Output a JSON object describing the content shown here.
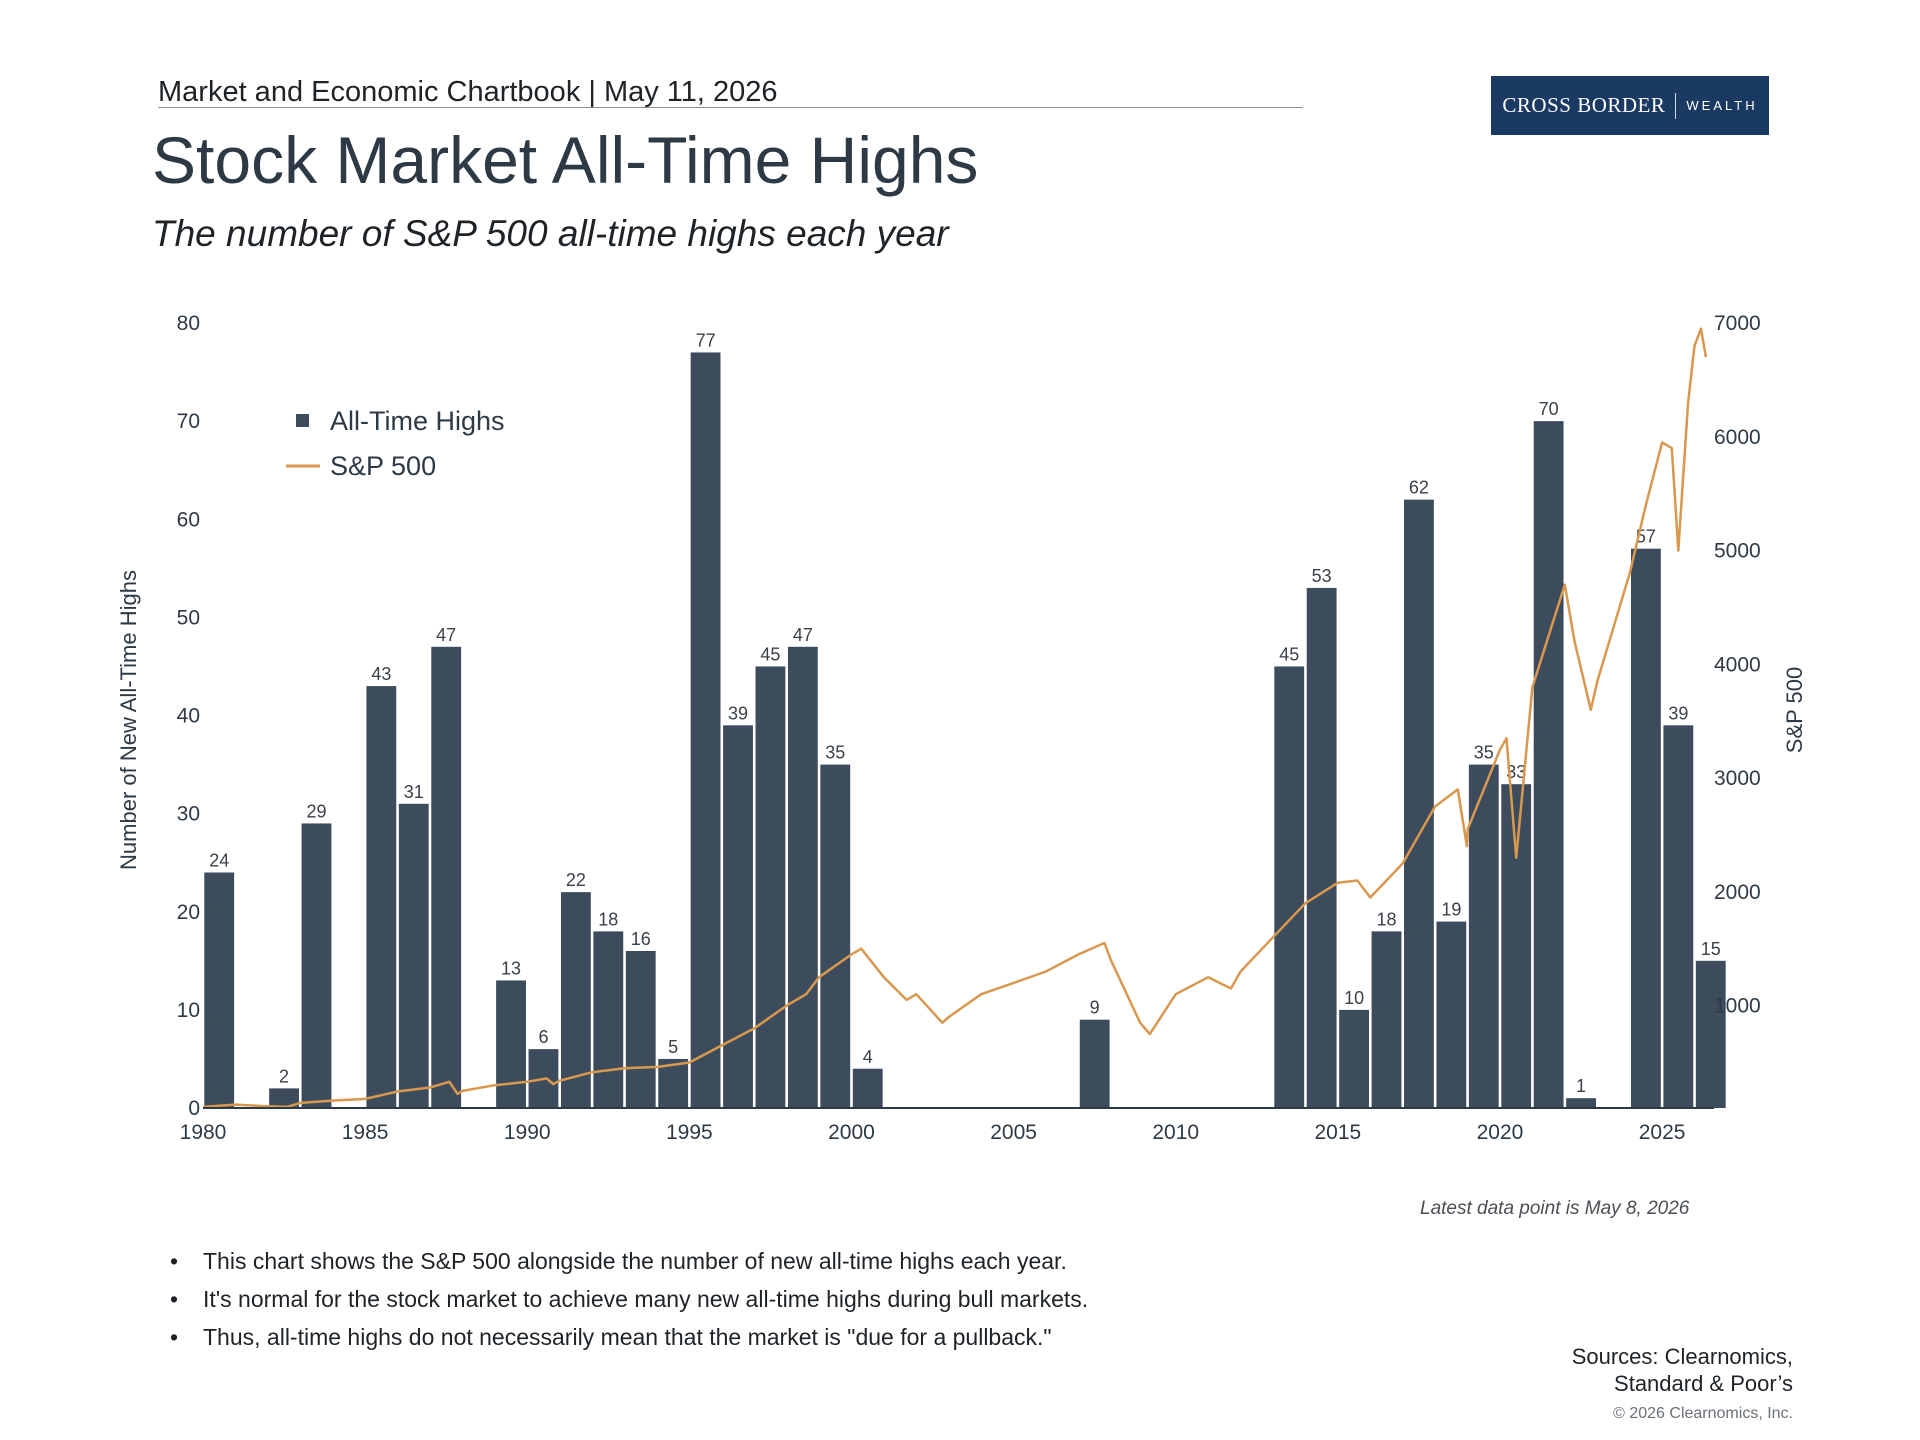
{
  "header": {
    "chartbook_line": "Market and Economic Chartbook | May 11, 2026",
    "logo_left": "CROSS BORDER",
    "logo_right": "WEALTH"
  },
  "title": "Stock Market All-Time Highs",
  "subtitle": "The number of S&P 500 all-time highs each year",
  "chart_data": {
    "type": "bar",
    "xlim": [
      1980,
      2026.6
    ],
    "x_ticks": [
      "1980",
      "1985",
      "1990",
      "1995",
      "2000",
      "2005",
      "2010",
      "2015",
      "2020",
      "2025"
    ],
    "ylabel_left": "Number of New All-Time Highs",
    "ylim_left": [
      0,
      80
    ],
    "y_ticks_left": [
      "0",
      "10",
      "20",
      "30",
      "40",
      "50",
      "60",
      "70",
      "80"
    ],
    "ylabel_right": "S&P 500",
    "ylim_right": [
      100,
      7000
    ],
    "y_ticks_right": [
      "1000",
      "2000",
      "3000",
      "4000",
      "5000",
      "6000",
      "7000"
    ],
    "legend": {
      "placement": "top-left",
      "entries": [
        "All-Time Highs",
        "S&P 500"
      ]
    },
    "colors": {
      "bars": "#3d4c5d",
      "line": "#d8984f",
      "axis": "#2d3a46"
    },
    "series": [
      {
        "name": "All-Time Highs",
        "type": "bar",
        "categories": [
          1980,
          1981,
          1982,
          1983,
          1984,
          1985,
          1986,
          1987,
          1988,
          1989,
          1990,
          1991,
          1992,
          1993,
          1994,
          1995,
          1996,
          1997,
          1998,
          1999,
          2000,
          2001,
          2002,
          2003,
          2004,
          2005,
          2006,
          2007,
          2008,
          2009,
          2010,
          2011,
          2012,
          2013,
          2014,
          2015,
          2016,
          2017,
          2018,
          2019,
          2020,
          2021,
          2022,
          2023,
          2024,
          2025,
          2026
        ],
        "values": [
          24,
          0,
          2,
          29,
          0,
          43,
          31,
          47,
          0,
          13,
          6,
          22,
          18,
          16,
          5,
          77,
          39,
          45,
          47,
          35,
          4,
          0,
          0,
          0,
          0,
          0,
          0,
          9,
          0,
          0,
          0,
          0,
          0,
          45,
          53,
          10,
          18,
          62,
          19,
          35,
          33,
          70,
          1,
          0,
          57,
          39,
          15
        ],
        "labels": [
          "24",
          "",
          "2",
          "29",
          "",
          "43",
          "31",
          "47",
          "",
          "13",
          "6",
          "22",
          "18",
          "16",
          "5",
          "77",
          "39",
          "45",
          "47",
          "35",
          "4",
          "",
          "",
          "",
          "",
          "",
          "",
          "9",
          "",
          "",
          "",
          "",
          "",
          "45",
          "53",
          "10",
          "18",
          "62",
          "19",
          "35",
          "33",
          "70",
          "1",
          "",
          "57",
          "39",
          "15"
        ]
      },
      {
        "name": "S&P 500",
        "type": "line",
        "x": [
          1980.0,
          1981.0,
          1982.0,
          1982.6,
          1983.0,
          1984.0,
          1985.0,
          1986.0,
          1987.0,
          1987.6,
          1987.85,
          1988.0,
          1989.0,
          1990.0,
          1990.6,
          1990.8,
          1991.0,
          1992.0,
          1993.0,
          1994.0,
          1995.0,
          1996.0,
          1997.0,
          1998.0,
          1998.6,
          1999.0,
          2000.0,
          2000.3,
          2001.0,
          2001.7,
          2002.0,
          2002.8,
          2003.0,
          2004.0,
          2005.0,
          2006.0,
          2007.0,
          2007.8,
          2008.0,
          2008.9,
          2009.2,
          2010.0,
          2011.0,
          2011.7,
          2012.0,
          2013.0,
          2014.0,
          2015.0,
          2015.6,
          2016.0,
          2016.5,
          2017.0,
          2018.0,
          2018.7,
          2018.98,
          2019.0,
          2020.0,
          2020.2,
          2020.5,
          2021.0,
          2022.0,
          2022.3,
          2022.8,
          2023.0,
          2024.0,
          2024.5,
          2025.0,
          2025.3,
          2025.5,
          2025.8,
          2026.0,
          2026.2,
          2026.35
        ],
        "values": [
          110,
          130,
          115,
          110,
          145,
          165,
          180,
          245,
          280,
          330,
          225,
          250,
          300,
          330,
          360,
          310,
          340,
          415,
          450,
          460,
          500,
          650,
          800,
          1000,
          1100,
          1250,
          1450,
          1500,
          1250,
          1050,
          1100,
          850,
          900,
          1100,
          1200,
          1300,
          1450,
          1550,
          1400,
          850,
          750,
          1100,
          1250,
          1150,
          1300,
          1600,
          1900,
          2080,
          2100,
          1950,
          2100,
          2250,
          2750,
          2900,
          2400,
          2550,
          3250,
          3350,
          2300,
          3800,
          4700,
          4200,
          3600,
          3850,
          4800,
          5400,
          5950,
          5900,
          5000,
          6300,
          6800,
          6950,
          6700
        ]
      }
    ],
    "note": "Latest data point is May 8, 2026"
  },
  "bullets": [
    "This chart shows the S&P 500 alongside the number of new all-time highs each year.",
    "It's normal for the stock market to achieve many new all-time highs during bull markets.",
    "Thus, all-time highs do not necessarily mean that the market is \"due for a pullback.\""
  ],
  "bullet_glyph": "•",
  "sources": {
    "line1": "Sources: Clearnomics,",
    "line2": "Standard & Poor’s"
  },
  "copyright": "© 2026 Clearnomics, Inc."
}
